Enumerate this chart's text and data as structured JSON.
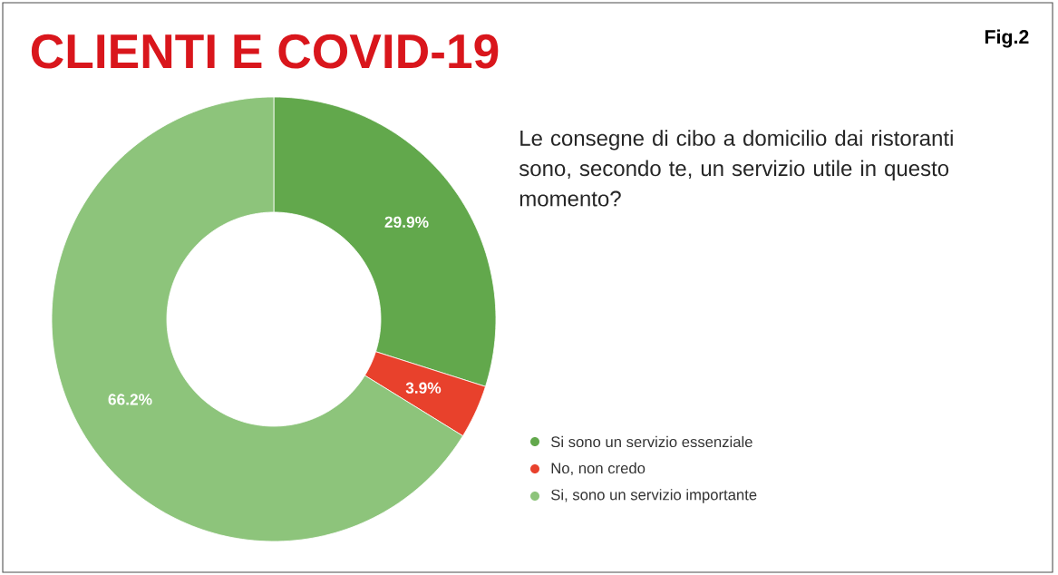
{
  "chart_data": {
    "type": "donut",
    "title": "CLIENTI E COVID-19",
    "subtitle": "Le consegne di cibo a domicilio dai ristoranti sono, secondo te, un servizio utile in questo momento?",
    "annotations": [
      "Fig.2"
    ],
    "categories": [
      "Si sono un servizio essenziale",
      "No, non credo",
      "Si, sono un servizio importante"
    ],
    "values": [
      29.9,
      3.9,
      66.2
    ],
    "value_labels": [
      "29.9%",
      "3.9%",
      "66.2%"
    ],
    "colors": [
      "#62a84c",
      "#e8412c",
      "#8dc47b"
    ],
    "legend": "right"
  }
}
